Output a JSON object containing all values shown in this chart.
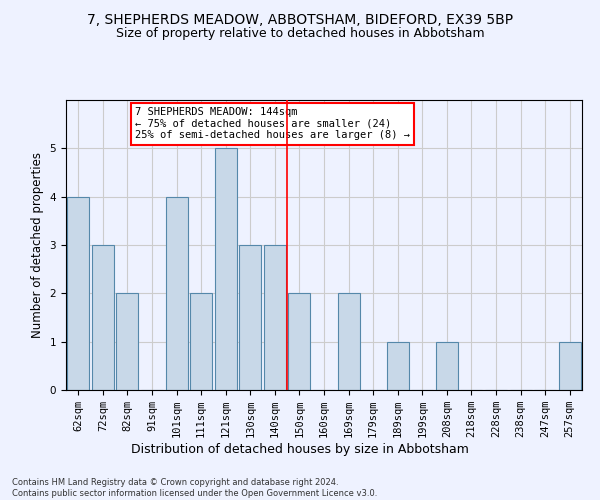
{
  "title": "7, SHEPHERDS MEADOW, ABBOTSHAM, BIDEFORD, EX39 5BP",
  "subtitle": "Size of property relative to detached houses in Abbotsham",
  "xlabel": "Distribution of detached houses by size in Abbotsham",
  "ylabel": "Number of detached properties",
  "categories": [
    "62sqm",
    "72sqm",
    "82sqm",
    "91sqm",
    "101sqm",
    "111sqm",
    "121sqm",
    "130sqm",
    "140sqm",
    "150sqm",
    "160sqm",
    "169sqm",
    "179sqm",
    "189sqm",
    "199sqm",
    "208sqm",
    "218sqm",
    "228sqm",
    "238sqm",
    "247sqm",
    "257sqm"
  ],
  "values": [
    4,
    3,
    2,
    0,
    4,
    2,
    5,
    3,
    3,
    2,
    0,
    2,
    0,
    1,
    0,
    1,
    0,
    0,
    0,
    0,
    1
  ],
  "bar_color": "#c8d8e8",
  "bar_edge_color": "#5588aa",
  "grid_color": "#cccccc",
  "vline_x": 8.5,
  "vline_color": "red",
  "annotation_text": "7 SHEPHERDS MEADOW: 144sqm\n← 75% of detached houses are smaller (24)\n25% of semi-detached houses are larger (8) →",
  "annotation_box_color": "white",
  "annotation_box_edge": "red",
  "ylim": [
    0,
    6
  ],
  "yticks": [
    0,
    1,
    2,
    3,
    4,
    5,
    6
  ],
  "footer": "Contains HM Land Registry data © Crown copyright and database right 2024.\nContains public sector information licensed under the Open Government Licence v3.0.",
  "bg_color": "#eef2ff",
  "title_fontsize": 10,
  "subtitle_fontsize": 9,
  "tick_fontsize": 7.5,
  "ylabel_fontsize": 8.5,
  "xlabel_fontsize": 9,
  "footer_fontsize": 6,
  "annotation_fontsize": 7.5
}
